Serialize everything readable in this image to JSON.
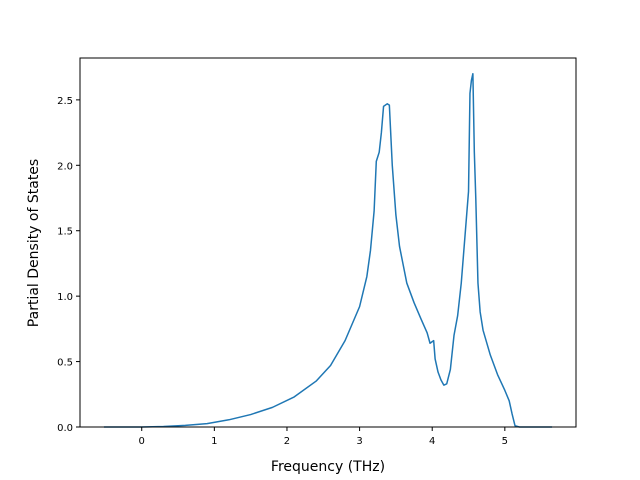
{
  "chart_data": {
    "type": "line",
    "xlabel": "Frequency (THz)",
    "ylabel": "Partial Density of States",
    "xlim": [
      -0.85,
      5.98
    ],
    "ylim": [
      0.0,
      2.82
    ],
    "x_ticks": [
      0,
      1,
      2,
      3,
      4,
      5
    ],
    "y_ticks": [
      0.0,
      0.5,
      1.0,
      1.5,
      2.0,
      2.5
    ],
    "x_tick_labels": [
      "0",
      "1",
      "2",
      "3",
      "4",
      "5"
    ],
    "y_tick_labels": [
      "0.0",
      "0.5",
      "1.0",
      "1.5",
      "2.0",
      "2.5"
    ],
    "grid": false,
    "series": [
      {
        "color": "#1f77b4",
        "points": [
          [
            -0.52,
            0.0
          ],
          [
            0.0,
            0.0
          ],
          [
            0.3,
            0.004
          ],
          [
            0.6,
            0.012
          ],
          [
            0.9,
            0.026
          ],
          [
            1.2,
            0.055
          ],
          [
            1.5,
            0.095
          ],
          [
            1.8,
            0.15
          ],
          [
            2.1,
            0.23
          ],
          [
            2.4,
            0.35
          ],
          [
            2.6,
            0.47
          ],
          [
            2.8,
            0.66
          ],
          [
            3.0,
            0.92
          ],
          [
            3.1,
            1.15
          ],
          [
            3.15,
            1.35
          ],
          [
            3.2,
            1.65
          ],
          [
            3.23,
            2.03
          ],
          [
            3.27,
            2.1
          ],
          [
            3.3,
            2.25
          ],
          [
            3.33,
            2.45
          ],
          [
            3.38,
            2.47
          ],
          [
            3.41,
            2.46
          ],
          [
            3.45,
            2.0
          ],
          [
            3.5,
            1.62
          ],
          [
            3.55,
            1.38
          ],
          [
            3.6,
            1.24
          ],
          [
            3.65,
            1.1
          ],
          [
            3.75,
            0.95
          ],
          [
            3.85,
            0.82
          ],
          [
            3.93,
            0.72
          ],
          [
            3.97,
            0.64
          ],
          [
            4.02,
            0.66
          ],
          [
            4.04,
            0.52
          ],
          [
            4.08,
            0.42
          ],
          [
            4.12,
            0.36
          ],
          [
            4.16,
            0.32
          ],
          [
            4.2,
            0.33
          ],
          [
            4.25,
            0.44
          ],
          [
            4.3,
            0.7
          ],
          [
            4.35,
            0.85
          ],
          [
            4.4,
            1.1
          ],
          [
            4.45,
            1.45
          ],
          [
            4.5,
            1.8
          ],
          [
            4.52,
            2.55
          ],
          [
            4.54,
            2.65
          ],
          [
            4.56,
            2.7
          ],
          [
            4.58,
            2.1
          ],
          [
            4.6,
            1.75
          ],
          [
            4.63,
            1.1
          ],
          [
            4.66,
            0.88
          ],
          [
            4.7,
            0.74
          ],
          [
            4.8,
            0.55
          ],
          [
            4.9,
            0.4
          ],
          [
            5.0,
            0.28
          ],
          [
            5.06,
            0.2
          ],
          [
            5.1,
            0.1
          ],
          [
            5.14,
            0.01
          ],
          [
            5.2,
            0.0
          ],
          [
            5.65,
            0.0
          ]
        ]
      }
    ]
  }
}
